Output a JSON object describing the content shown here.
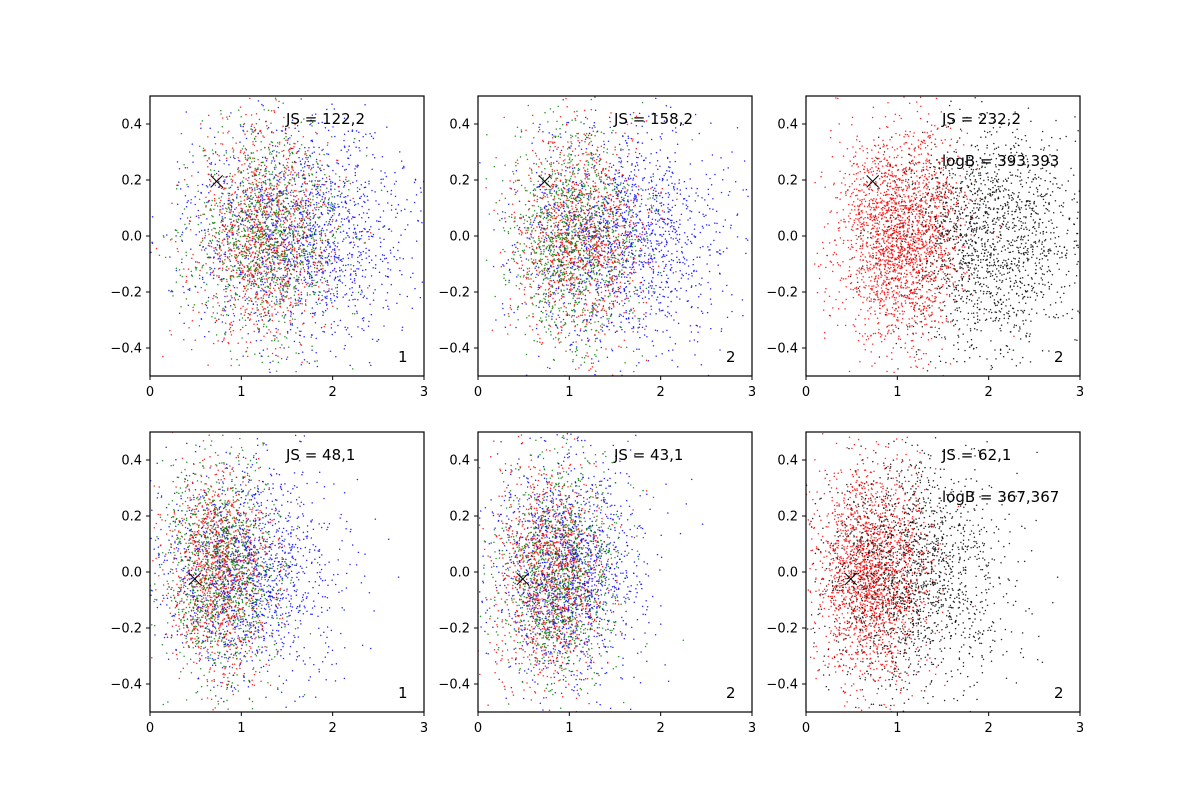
{
  "figure": {
    "background": "#ffffff"
  },
  "colors": {
    "blue": "#0000ff",
    "red": "#ff0000",
    "green": "#008000",
    "black": "#000000"
  },
  "chart_data": [
    {
      "type": "scatter",
      "panel": "top-left",
      "xlim": [
        0,
        3
      ],
      "ylim": [
        -0.5,
        0.5
      ],
      "xticks": [
        0,
        1,
        2,
        3
      ],
      "yticks": [
        -0.4,
        -0.2,
        0.0,
        0.2,
        0.4
      ],
      "xtick_labels": [
        "0",
        "1",
        "2",
        "3"
      ],
      "ytick_labels": [
        "−0.4",
        "−0.2",
        "0.0",
        "0.2",
        "0.4"
      ],
      "annotations": [
        "JS = 122,2"
      ],
      "corner_label": "1",
      "marker": {
        "x": 0.73,
        "y": 0.195
      },
      "series": [
        {
          "color": "#0000ff",
          "x_mean": 1.65,
          "x_sd": 0.62,
          "y_sd": 0.2,
          "count": 1500
        },
        {
          "color": "#ff0000",
          "x_mean": 1.25,
          "x_sd": 0.38,
          "y_sd": 0.19,
          "count": 1200
        },
        {
          "color": "#008000",
          "x_mean": 1.3,
          "x_sd": 0.4,
          "y_sd": 0.19,
          "count": 1200
        }
      ]
    },
    {
      "type": "scatter",
      "panel": "top-middle",
      "xlim": [
        0,
        3
      ],
      "ylim": [
        -0.5,
        0.5
      ],
      "xticks": [
        0,
        1,
        2,
        3
      ],
      "yticks": [
        -0.4,
        -0.2,
        0.0,
        0.2,
        0.4
      ],
      "xtick_labels": [
        "0",
        "1",
        "2",
        "3"
      ],
      "ytick_labels": [
        "−0.4",
        "−0.2",
        "0.0",
        "0.2",
        "0.4"
      ],
      "annotations": [
        "JS = 158,2"
      ],
      "corner_label": "2",
      "marker": {
        "x": 0.73,
        "y": 0.195
      },
      "series": [
        {
          "color": "#0000ff",
          "x_mean": 1.6,
          "x_sd": 0.6,
          "y_sd": 0.2,
          "count": 1500
        },
        {
          "color": "#ff0000",
          "x_mean": 1.1,
          "x_sd": 0.36,
          "y_sd": 0.19,
          "count": 1200
        },
        {
          "color": "#008000",
          "x_mean": 1.05,
          "x_sd": 0.36,
          "y_sd": 0.19,
          "count": 1200
        }
      ]
    },
    {
      "type": "scatter",
      "panel": "top-right",
      "xlim": [
        0,
        3
      ],
      "ylim": [
        -0.5,
        0.5
      ],
      "xticks": [
        0,
        1,
        2,
        3
      ],
      "yticks": [
        -0.4,
        -0.2,
        0.0,
        0.2,
        0.4
      ],
      "xtick_labels": [
        "0",
        "1",
        "2",
        "3"
      ],
      "ytick_labels": [
        "−0.4",
        "−0.2",
        "0.0",
        "0.2",
        "0.4"
      ],
      "annotations": [
        "JS = 232,2",
        "logB = 393,393"
      ],
      "corner_label": "2",
      "marker": {
        "x": 0.73,
        "y": 0.195
      },
      "series": [
        {
          "color": "#000000",
          "x_mean": 2.0,
          "x_sd": 0.55,
          "y_sd": 0.2,
          "count": 1800
        },
        {
          "color": "#ff0000",
          "x_mean": 1.05,
          "x_sd": 0.33,
          "y_sd": 0.19,
          "count": 2200
        }
      ]
    },
    {
      "type": "scatter",
      "panel": "bottom-left",
      "xlim": [
        0,
        3
      ],
      "ylim": [
        -0.5,
        0.5
      ],
      "xticks": [
        0,
        1,
        2,
        3
      ],
      "yticks": [
        -0.4,
        -0.2,
        0.0,
        0.2,
        0.4
      ],
      "xtick_labels": [
        "0",
        "1",
        "2",
        "3"
      ],
      "ytick_labels": [
        "−0.4",
        "−0.2",
        "0.0",
        "0.2",
        "0.4"
      ],
      "annotations": [
        "JS = 48,1"
      ],
      "corner_label": "1",
      "marker": {
        "x": 0.49,
        "y": -0.025
      },
      "series": [
        {
          "color": "#0000ff",
          "x_mean": 1.05,
          "x_sd": 0.5,
          "y_sd": 0.2,
          "count": 1400
        },
        {
          "color": "#ff0000",
          "x_mean": 0.75,
          "x_sd": 0.3,
          "y_sd": 0.19,
          "count": 1200
        },
        {
          "color": "#008000",
          "x_mean": 0.8,
          "x_sd": 0.32,
          "y_sd": 0.19,
          "count": 1200
        }
      ]
    },
    {
      "type": "scatter",
      "panel": "bottom-middle",
      "xlim": [
        0,
        3
      ],
      "ylim": [
        -0.5,
        0.5
      ],
      "xticks": [
        0,
        1,
        2,
        3
      ],
      "yticks": [
        -0.4,
        -0.2,
        0.0,
        0.2,
        0.4
      ],
      "xtick_labels": [
        "0",
        "1",
        "2",
        "3"
      ],
      "ytick_labels": [
        "−0.4",
        "−0.2",
        "0.0",
        "0.2",
        "0.4"
      ],
      "annotations": [
        "JS = 43,1"
      ],
      "corner_label": "2",
      "marker": {
        "x": 0.49,
        "y": -0.025
      },
      "series": [
        {
          "color": "#0000ff",
          "x_mean": 1.0,
          "x_sd": 0.42,
          "y_sd": 0.2,
          "count": 1400
        },
        {
          "color": "#ff0000",
          "x_mean": 0.78,
          "x_sd": 0.3,
          "y_sd": 0.19,
          "count": 1200
        },
        {
          "color": "#008000",
          "x_mean": 0.9,
          "x_sd": 0.33,
          "y_sd": 0.19,
          "count": 1200
        }
      ]
    },
    {
      "type": "scatter",
      "panel": "bottom-right",
      "xlim": [
        0,
        3
      ],
      "ylim": [
        -0.5,
        0.5
      ],
      "xticks": [
        0,
        1,
        2,
        3
      ],
      "yticks": [
        -0.4,
        -0.2,
        0.0,
        0.2,
        0.4
      ],
      "xtick_labels": [
        "0",
        "1",
        "2",
        "3"
      ],
      "ytick_labels": [
        "−0.4",
        "−0.2",
        "0.0",
        "0.2",
        "0.4"
      ],
      "annotations": [
        "JS = 62,1",
        "logB = 367,367"
      ],
      "corner_label": "2",
      "marker": {
        "x": 0.49,
        "y": -0.025
      },
      "series": [
        {
          "color": "#000000",
          "x_mean": 1.15,
          "x_sd": 0.48,
          "y_sd": 0.2,
          "count": 1800
        },
        {
          "color": "#ff0000",
          "x_mean": 0.72,
          "x_sd": 0.3,
          "y_sd": 0.19,
          "count": 2000
        }
      ]
    }
  ]
}
